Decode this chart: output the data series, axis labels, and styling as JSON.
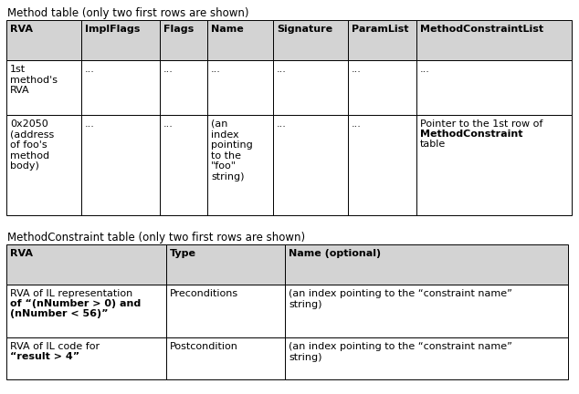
{
  "bg_color": "#ffffff",
  "table1_title": "Method table (only two first rows are shown)",
  "table1_headers": [
    "RVA",
    "ImplFlags",
    "Flags",
    "Name",
    "Signature",
    "ParamList",
    "MethodConstraintList"
  ],
  "table1_row1": [
    "1st\nmethod's\nRVA",
    "...",
    "...",
    "...",
    "...",
    "...",
    "..."
  ],
  "table1_row2_col0": "0x2050\n(address\nof foo's\nmethod\nbody)",
  "table1_row2_col1": "...",
  "table1_row2_col2": "...",
  "table1_row2_col3": "(an\nindex\npointing\nto the\n\"foo\"\nstring)",
  "table1_row2_col4": "...",
  "table1_row2_col5": "...",
  "table1_row2_col6_line1": "Pointer to the 1st row of",
  "table1_row2_col6_line2": "MethodConstraint",
  "table1_row2_col6_line3": "table",
  "table2_title": "MethodConstraint table (only two first rows are shown)",
  "table2_headers": [
    "RVA",
    "Type",
    "Name (optional)"
  ],
  "table2_row1_col0_line1": "RVA of IL representation",
  "table2_row1_col0_line2": "of “(nNumber > 0) and",
  "table2_row1_col0_line3": "(nNumber < 56)”",
  "table2_row1_col1": "Preconditions",
  "table2_row1_col2": "(an index pointing to the “constraint name”\nstring)",
  "table2_row2_col0_line1": "RVA of IL code for",
  "table2_row2_col0_line2": "“result > 4”",
  "table2_row2_col1": "Postcondition",
  "table2_row2_col2": "(an index pointing to the “constraint name”\nstring)",
  "header_bg": "#d3d3d3",
  "cell_bg": "#ffffff",
  "border_color": "#000000",
  "text_color": "#000000",
  "title_fontsize": 8.5,
  "cell_fontsize": 8.0,
  "header_fontsize": 8.0,
  "font_family": "Arial"
}
